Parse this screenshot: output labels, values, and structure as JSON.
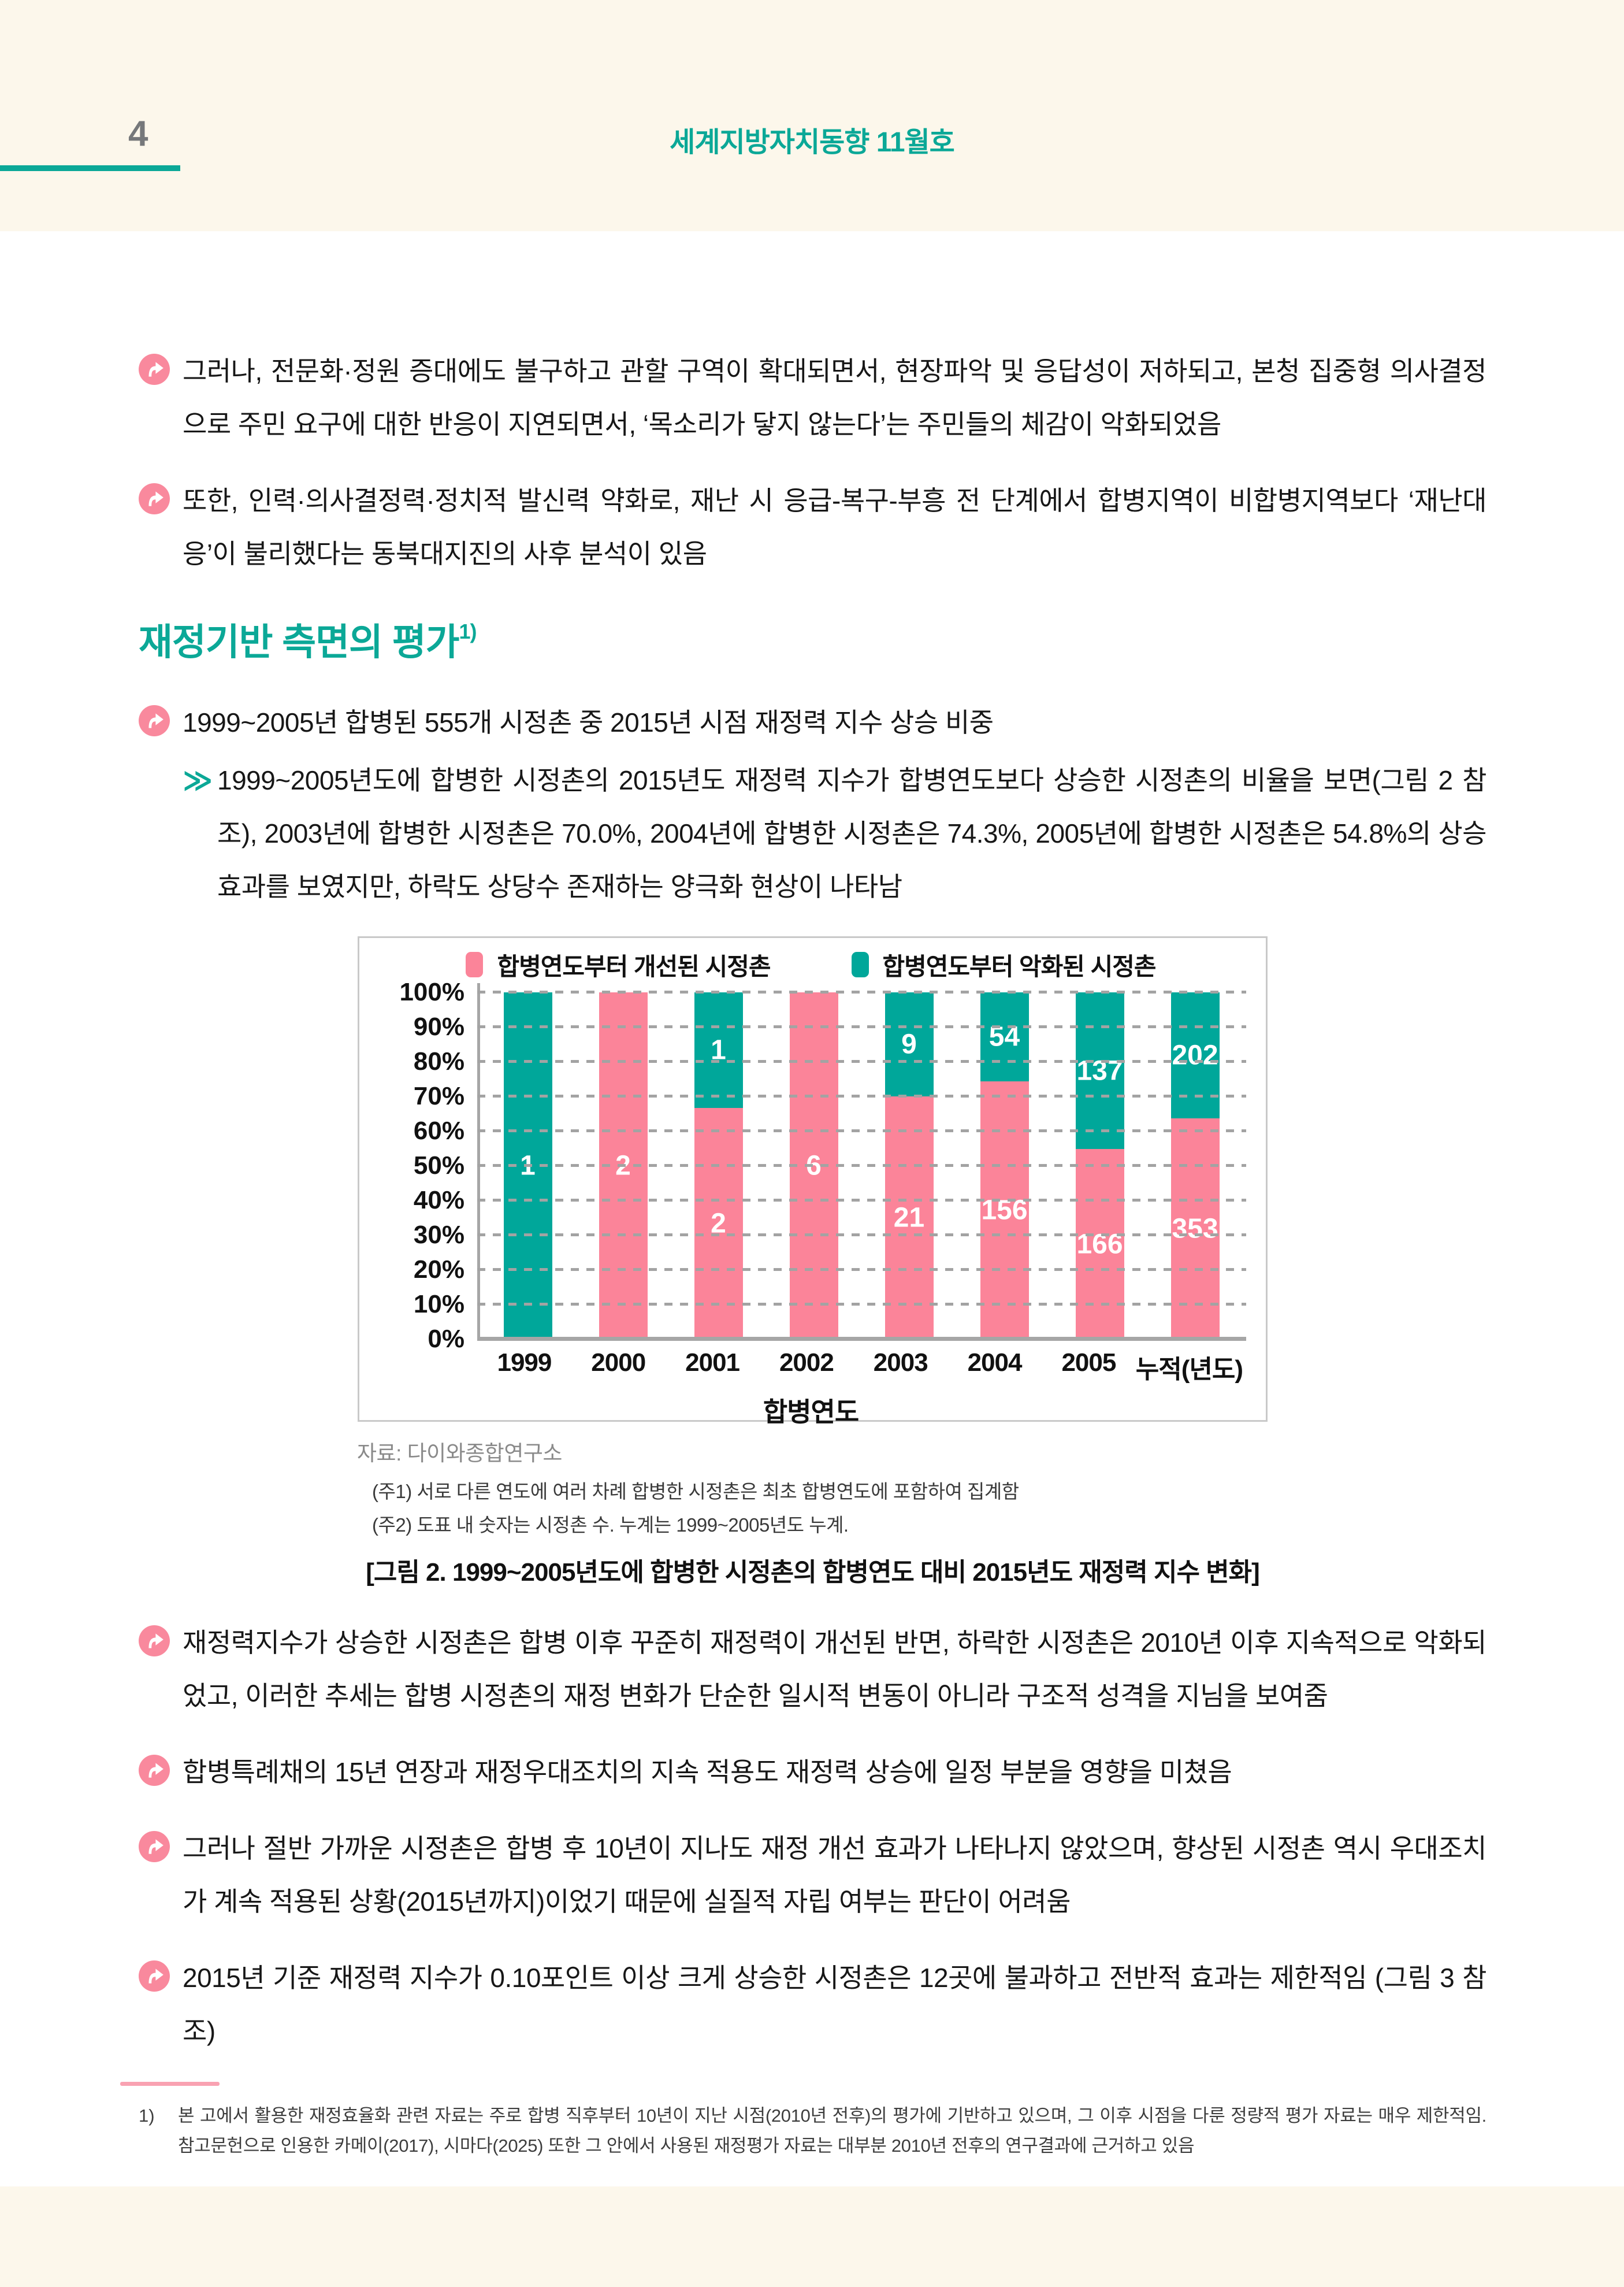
{
  "page": {
    "number": "4",
    "title": "세계지방자치동향 11월호"
  },
  "bullets_top": [
    {
      "text": "그러나, 전문화·정원 증대에도 불구하고 관할 구역이 확대되면서, 현장파악 및 응답성이 저하되고, 본청 집중형 의사결정으로 주민 요구에 대한 반응이 지연되면서, ‘목소리가 닿지 않는다’는 주민들의 체감이 악화되었음"
    },
    {
      "text": "또한, 인력·의사결정력·정치적 발신력 약화로, 재난 시 응급-복구-부흥 전 단계에서 합병지역이 비합병지역보다 ‘재난대응’이 불리했다는 동북대지진의 사후 분석이 있음"
    }
  ],
  "section": {
    "title": "재정기반 측면의 평가",
    "sup": "1)"
  },
  "bullet_ratio": {
    "text": "1999~2005년 합병된 555개 시정촌 중 2015년 시점 재정력 지수 상승 비중"
  },
  "sub_bullet": {
    "marker": "≫",
    "text": "1999~2005년도에 합병한 시정촌의 2015년도 재정력 지수가 합병연도보다 상승한 시정촌의 비율을 보면(그림 2 참조), 2003년에 합병한 시정촌은 70.0%, 2004년에 합병한 시정촌은 74.3%, 2005년에 합병한 시정촌은 54.8%의 상승효과를 보였지만, 하락도 상당수 존재하는 양극화 현상이 나타남"
  },
  "chart_data": {
    "type": "bar",
    "stacked": true,
    "title": "",
    "categories": [
      "1999",
      "2000",
      "2001",
      "2002",
      "2003",
      "2004",
      "2005",
      "누적(년도)"
    ],
    "series": [
      {
        "name": "합병연도부터 개선된 시정촌",
        "color": "#FB8499",
        "counts": [
          0,
          2,
          2,
          6,
          21,
          156,
          166,
          353
        ],
        "percents": [
          0,
          100,
          66.7,
          100,
          70.0,
          74.3,
          54.8,
          63.6
        ]
      },
      {
        "name": "합병연도부터 악화된 시정촌",
        "color": "#00A79A",
        "counts": [
          1,
          0,
          1,
          0,
          9,
          54,
          137,
          202
        ],
        "percents": [
          100,
          0,
          33.3,
          0,
          30.0,
          25.7,
          45.2,
          36.4
        ]
      }
    ],
    "xlabel": "합병연도",
    "ylabel": "",
    "y_ticks": [
      "100%",
      "90%",
      "80%",
      "70%",
      "60%",
      "50%",
      "40%",
      "30%",
      "20%",
      "10%",
      "0%"
    ],
    "ylim": [
      0,
      100
    ],
    "grid": "dashed-horizontal",
    "legend_position": "top"
  },
  "figure": {
    "source": "자료: 다이와종합연구소",
    "note1": "(주1) 서로 다른 연도에 여러 차례 합병한 시정촌은 최초 합병연도에 포함하여 집계함",
    "note2": "(주2) 도표 내 숫자는 시정촌 수. 누계는 1999~2005년도 누계.",
    "caption": "[그림 2. 1999~2005년도에 합병한 시정촌의 합병연도 대비 2015년도 재정력 지수 변화]"
  },
  "bullets_bottom": [
    {
      "text": "재정력지수가 상승한 시정촌은 합병 이후 꾸준히 재정력이 개선된 반면, 하락한 시정촌은 2010년 이후 지속적으로 악화되었고, 이러한 추세는 합병 시정촌의 재정 변화가 단순한 일시적 변동이 아니라 구조적 성격을 지님을 보여줌"
    },
    {
      "text": "합병특례채의 15년 연장과 재정우대조치의 지속 적용도 재정력 상승에 일정 부분을 영향을 미쳤음"
    },
    {
      "text": "그러나 절반 가까운 시정촌은 합병 후 10년이 지나도 재정 개선 효과가 나타나지 않았으며, 향상된 시정촌 역시 우대조치가 계속 적용된 상황(2015년까지)이었기 때문에 실질적 자립 여부는 판단이 어려움"
    },
    {
      "text": "2015년 기준 재정력 지수가 0.10포인트 이상 크게 상승한 시정촌은 12곳에 불과하고 전반적 효과는 제한적임 (그림 3 참조)"
    }
  ],
  "footnote": {
    "marker": "1)",
    "text": "본 고에서 활용한 재정효율화 관련 자료는 주로 합병 직후부터 10년이 지난 시점(2010년 전후)의 평가에 기반하고 있으며, 그 이후 시점을 다룬 정량적 평가 자료는 매우 제한적임. 참고문헌으로 인용한 카메이(2017), 시마다(2025) 또한 그 안에서 사용된 재정평가 자료는 대부분 2010년 전후의 연구결과에 근거하고 있음"
  }
}
